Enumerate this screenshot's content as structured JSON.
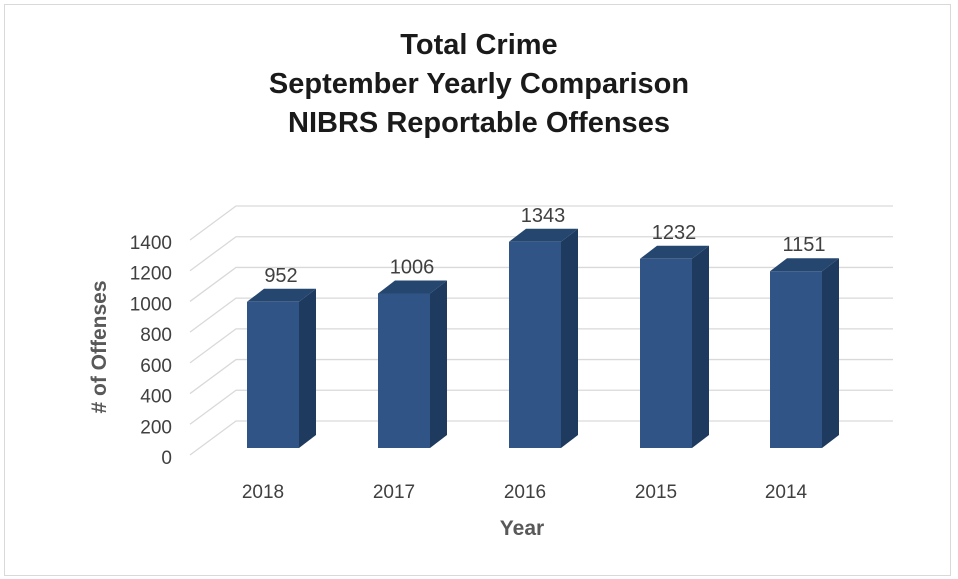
{
  "chart_data": {
    "type": "bar",
    "title_lines": [
      "Total Crime",
      "September Yearly Comparison",
      "NIBRS Reportable Offenses"
    ],
    "categories": [
      "2018",
      "2017",
      "2016",
      "2015",
      "2014"
    ],
    "values": [
      952,
      1006,
      1343,
      1232,
      1151
    ],
    "xlabel": "Year",
    "ylabel": "# of Offenses",
    "ylim": [
      0,
      1400
    ],
    "yticks": [
      "0",
      "200",
      "400",
      "600",
      "800",
      "1000",
      "1200",
      "1400"
    ],
    "grid": true,
    "legend": "none",
    "three_d": true,
    "colors": {
      "bar_front": "#2f5485",
      "bar_side": "#1f3a5f",
      "bar_top": "#25466f",
      "grid": "#d9d9d9"
    }
  }
}
